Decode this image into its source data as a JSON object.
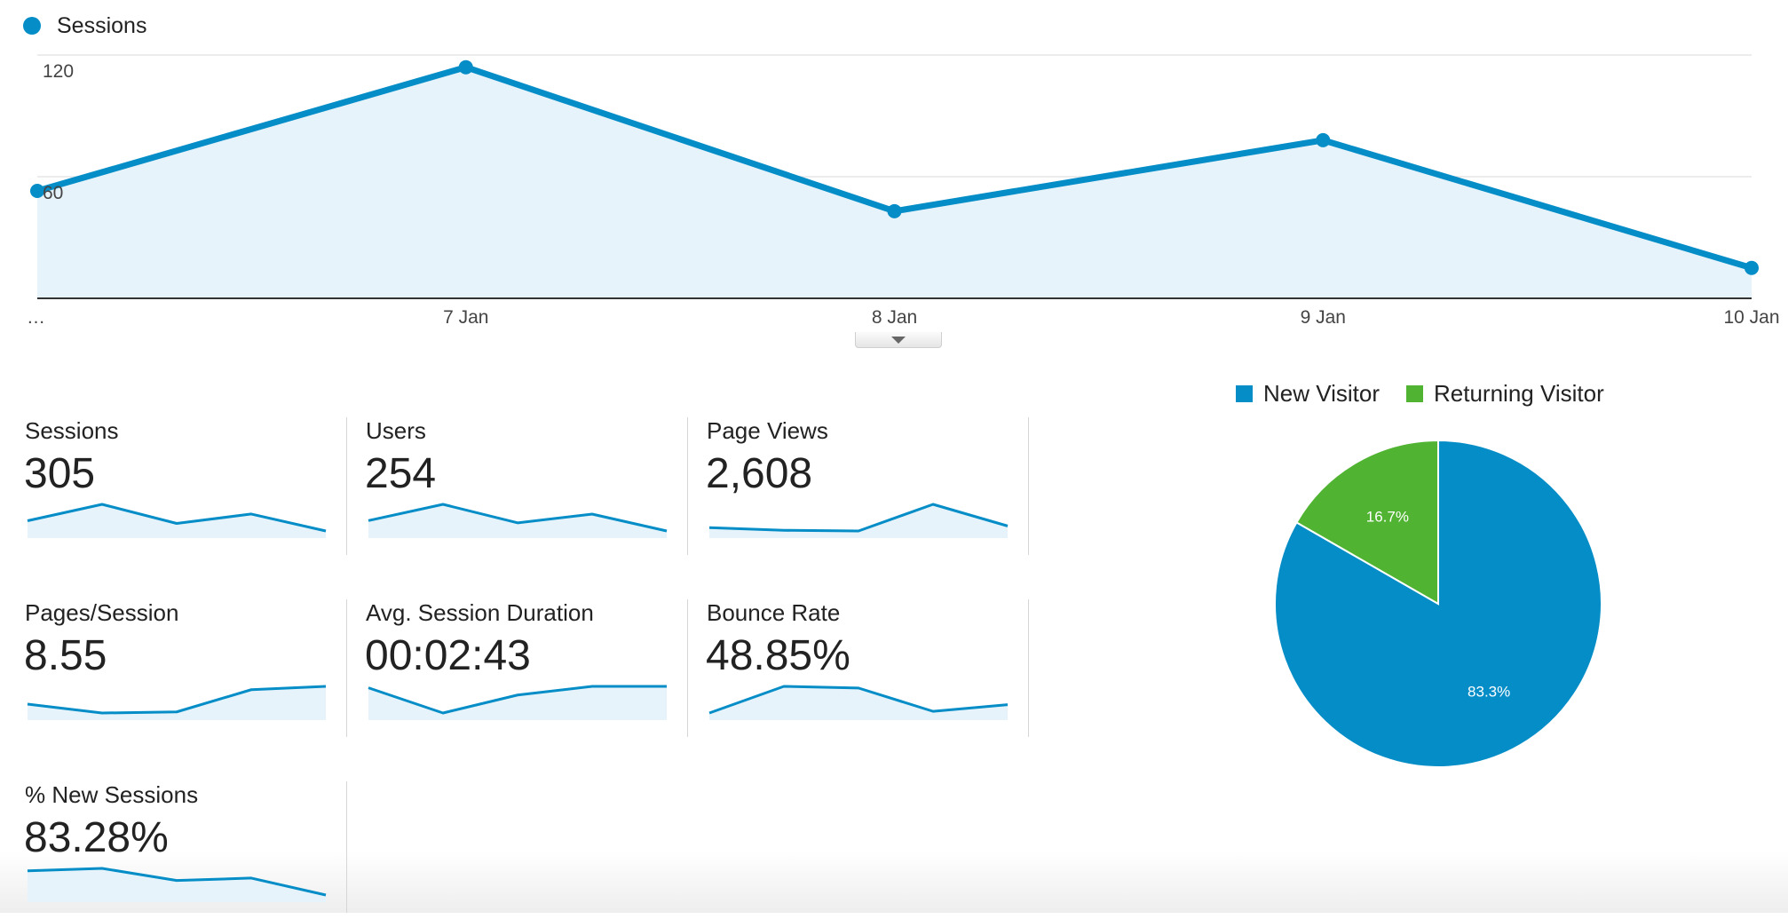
{
  "main_chart": {
    "legend_label": "Sessions",
    "color": "#058dc7",
    "fill_color": "#e6f3fa",
    "y_ticks": [
      "120",
      "60"
    ],
    "x_labels": [
      "…",
      "7 Jan",
      "8 Jan",
      "9 Jan",
      "10 Jan"
    ],
    "chart_data": {
      "type": "area",
      "title": "",
      "series": [
        {
          "name": "Sessions",
          "values": [
            53,
            114,
            43,
            78,
            15
          ]
        }
      ],
      "categories": [
        "…",
        "7 Jan",
        "8 Jan",
        "9 Jan",
        "10 Jan"
      ],
      "ylim": [
        0,
        120
      ],
      "grid": true
    }
  },
  "metrics": [
    {
      "label": "Sessions",
      "value": "305",
      "spark": [
        53,
        114,
        43,
        78,
        15
      ]
    },
    {
      "label": "Users",
      "value": "254",
      "spark": [
        45,
        95,
        38,
        65,
        13
      ]
    },
    {
      "label": "Page Views",
      "value": "2,608",
      "spark": [
        400,
        320,
        300,
        1100,
        450
      ]
    },
    {
      "label": "Pages/Session",
      "value": "8.55",
      "spark": [
        7.6,
        6.8,
        6.9,
        8.9,
        9.2
      ]
    },
    {
      "label": "Avg. Session Duration",
      "value": "00:02:43",
      "spark": [
        150,
        115,
        140,
        152,
        152
      ]
    },
    {
      "label": "Bounce Rate",
      "value": "48.85%",
      "spark": [
        40,
        56,
        55,
        41,
        45
      ]
    },
    {
      "label": "% New Sessions",
      "value": "83.28%",
      "spark": [
        84,
        85,
        80,
        81,
        74
      ]
    }
  ],
  "pie": {
    "legend": [
      {
        "label": "New Visitor",
        "color": "#058dc7"
      },
      {
        "label": "Returning Visitor",
        "color": "#50b432"
      }
    ],
    "chart_data": {
      "type": "pie",
      "categories": [
        "New Visitor",
        "Returning Visitor"
      ],
      "values": [
        83.3,
        16.7
      ],
      "labels": [
        "83.3%",
        "16.7%"
      ]
    }
  }
}
